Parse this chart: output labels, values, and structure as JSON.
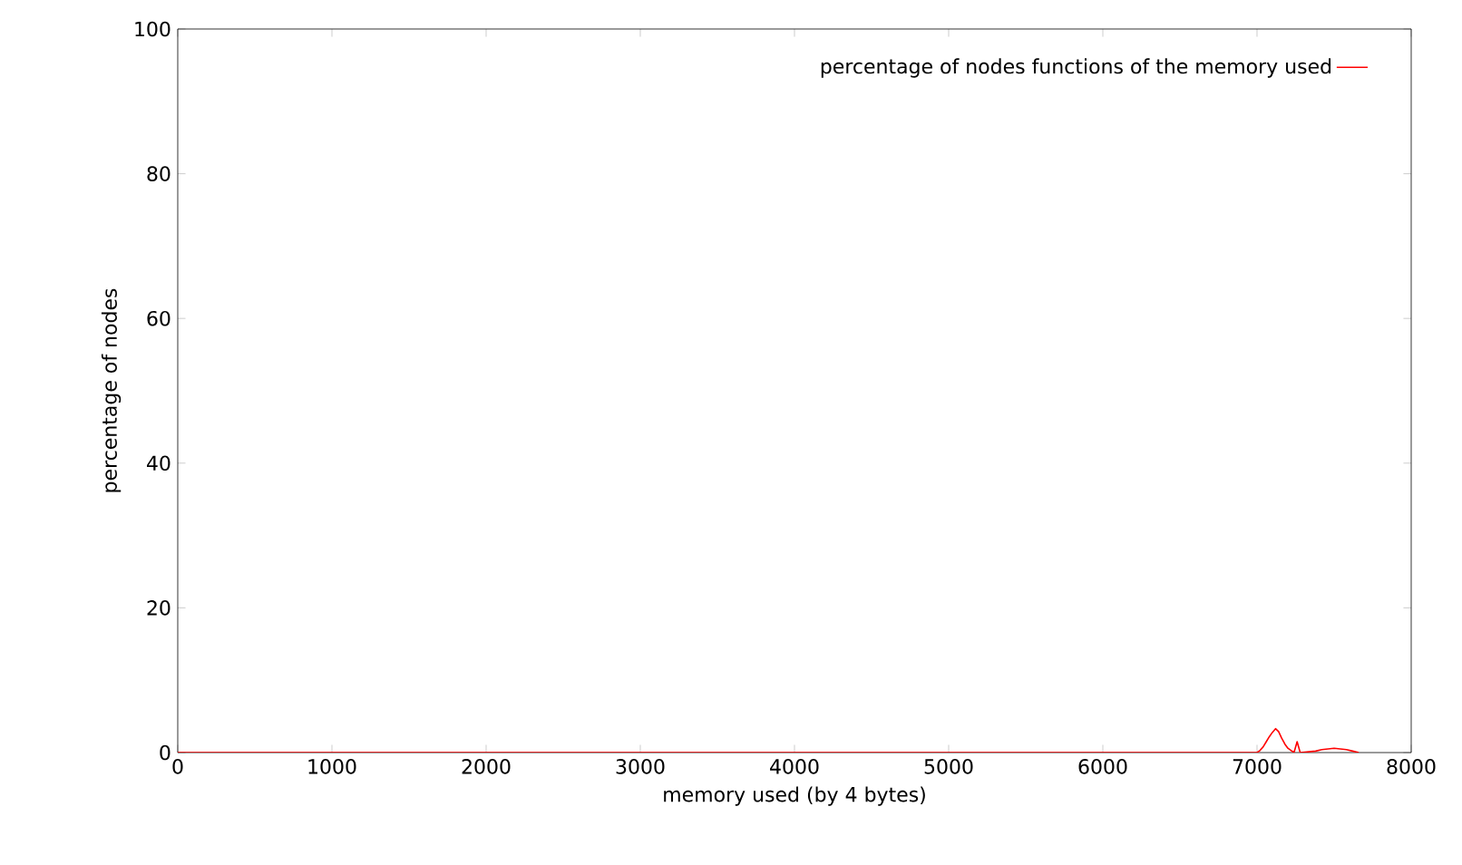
{
  "chart_data": {
    "type": "line",
    "xlabel": "memory used (by 4 bytes)",
    "ylabel": "percentage of nodes",
    "series": [
      {
        "name": "percentage of nodes functions of the memory used",
        "color": "#ff0000",
        "x": [
          0,
          7000,
          7020,
          7040,
          7060,
          7080,
          7100,
          7120,
          7140,
          7160,
          7180,
          7200,
          7220,
          7240,
          7260,
          7280,
          7380,
          7420,
          7460,
          7500,
          7540,
          7580,
          7620,
          7660
        ],
        "values": [
          0,
          0,
          0.3,
          0.8,
          1.5,
          2.2,
          2.8,
          3.3,
          2.9,
          2.0,
          1.2,
          0.6,
          0.3,
          0,
          1.5,
          0,
          0.2,
          0.4,
          0.5,
          0.6,
          0.5,
          0.4,
          0.2,
          0
        ]
      }
    ],
    "xlim": [
      0,
      8000
    ],
    "ylim": [
      0,
      100
    ],
    "xticks": [
      0,
      1000,
      2000,
      3000,
      4000,
      5000,
      6000,
      7000,
      8000
    ],
    "yticks": [
      0,
      20,
      40,
      60,
      80,
      100
    ],
    "legend": "top right",
    "grid": false
  }
}
